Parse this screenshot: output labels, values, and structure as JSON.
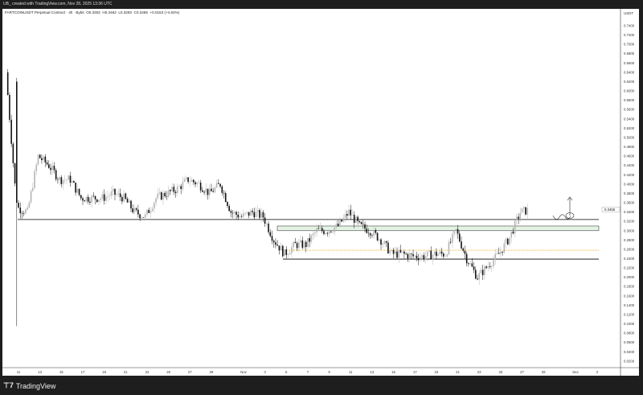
{
  "header": {
    "caption": "UB_ created with TradingView.com, Nov 28, 2025 13:36 UTC"
  },
  "legend": {
    "symbol": "FARTCOINUSDT Perpetual Contract · 4h · Bybit",
    "open": "O0.3302",
    "high": "H0.3462",
    "low": "L0.3293",
    "close": "C0.3455",
    "change": "+0.0153 (+4.63%)"
  },
  "brand": {
    "name": "TradingView"
  },
  "chart_data": {
    "type": "candlestick",
    "interval": "4h",
    "currency": "USDT",
    "ylim": [
      0.0,
      0.75
    ],
    "y_ticks": [
      "0.7400",
      "0.7200",
      "0.7000",
      "0.6800",
      "0.6600",
      "0.6400",
      "0.6200",
      "0.6000",
      "0.5800",
      "0.5600",
      "0.5400",
      "0.5200",
      "0.5000",
      "0.4800",
      "0.4600",
      "0.4400",
      "0.4200",
      "0.4000",
      "0.3800",
      "0.3600",
      "0.3400",
      "0.3200",
      "0.3000",
      "0.2800",
      "0.2600",
      "0.2400",
      "0.2200",
      "0.2000",
      "0.1800",
      "0.1600",
      "0.1400",
      "0.1200",
      "0.1000",
      "0.0800",
      "0.0600",
      "0.0400",
      "0.0200"
    ],
    "x_ticks": [
      "11",
      "13",
      "15",
      "17",
      "19",
      "21",
      "23",
      "25",
      "27",
      "29",
      "Nov",
      "3",
      "5",
      "7",
      "9",
      "11",
      "13",
      "15",
      "17",
      "19",
      "21",
      "23",
      "25",
      "27",
      "29",
      "Dec",
      "3"
    ],
    "last_price": "0.3455",
    "approx_daily_close": {
      "x": [
        "Oct 10",
        "Oct 11",
        "Oct 12",
        "Oct 13",
        "Oct 14",
        "Oct 15",
        "Oct 16",
        "Oct 17",
        "Oct 18",
        "Oct 19",
        "Oct 20",
        "Oct 21",
        "Oct 22",
        "Oct 23",
        "Oct 24",
        "Oct 25",
        "Oct 26",
        "Oct 27",
        "Oct 28",
        "Oct 29",
        "Oct 30",
        "Oct 31",
        "Nov 1",
        "Nov 2",
        "Nov 3",
        "Nov 4",
        "Nov 5",
        "Nov 6",
        "Nov 7",
        "Nov 8",
        "Nov 9",
        "Nov 10",
        "Nov 11",
        "Nov 12",
        "Nov 13",
        "Nov 14",
        "Nov 15",
        "Nov 16",
        "Nov 17",
        "Nov 18",
        "Nov 19",
        "Nov 20",
        "Nov 21",
        "Nov 22",
        "Nov 23",
        "Nov 24",
        "Nov 25",
        "Nov 26",
        "Nov 27",
        "Nov 28"
      ],
      "y": [
        0.64,
        0.35,
        0.34,
        0.46,
        0.44,
        0.41,
        0.41,
        0.37,
        0.37,
        0.37,
        0.38,
        0.37,
        0.34,
        0.33,
        0.37,
        0.38,
        0.39,
        0.41,
        0.4,
        0.38,
        0.4,
        0.34,
        0.33,
        0.34,
        0.33,
        0.28,
        0.25,
        0.27,
        0.27,
        0.3,
        0.3,
        0.31,
        0.34,
        0.31,
        0.3,
        0.28,
        0.25,
        0.25,
        0.245,
        0.245,
        0.25,
        0.25,
        0.3,
        0.24,
        0.2,
        0.225,
        0.25,
        0.285,
        0.34,
        0.3455
      ]
    },
    "extremes": {
      "Oct 11 low wick": 0.095,
      "Oct 10 high": 0.67,
      "Nov 23 low": 0.18,
      "Nov 27 high": 0.38
    },
    "levels": [
      {
        "kind": "support line",
        "price": 0.324,
        "color": "#000000"
      },
      {
        "kind": "zone",
        "price_from": 0.3,
        "price_to": 0.31,
        "color": "#7cc47c"
      },
      {
        "kind": "dotted line",
        "price": 0.258,
        "color": "#f5a623"
      },
      {
        "kind": "range low line",
        "price": 0.239,
        "color": "#000000"
      }
    ],
    "annotations": [
      "up-arrow drawing",
      "wave scribble drawing"
    ],
    "colors": {
      "up": "#b4b4b4",
      "down": "#111111"
    }
  }
}
